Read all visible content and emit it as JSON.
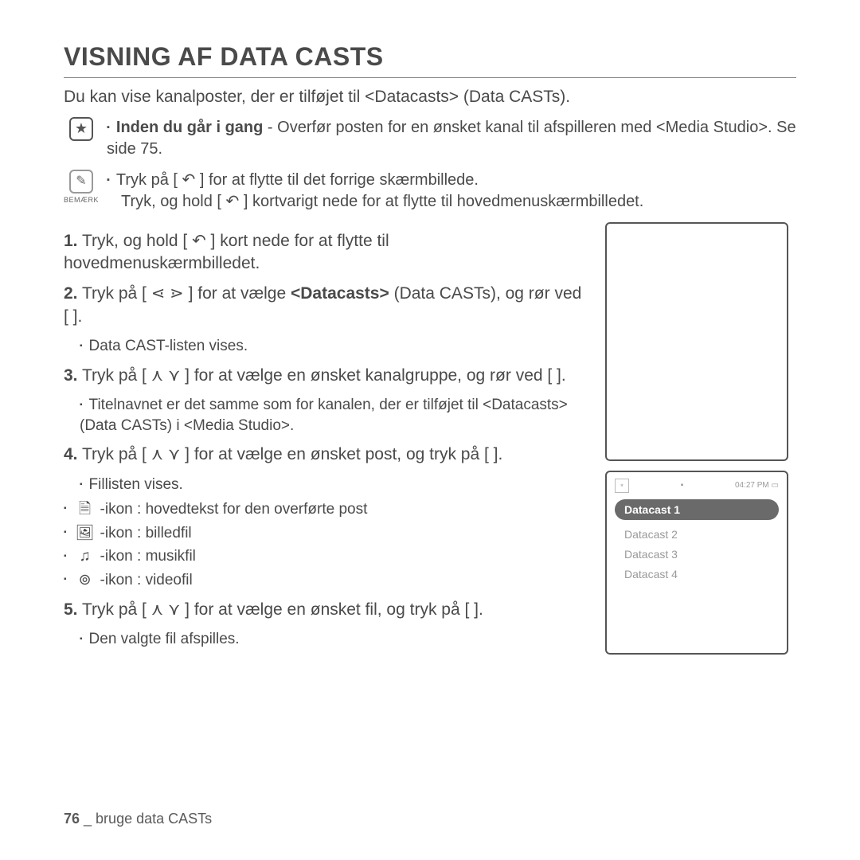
{
  "title": "VISNING AF DATA CASTS",
  "intro": "Du kan vise kanalposter, der er tilføjet til <Datacasts> (Data CASTs).",
  "note_star": {
    "label_bold": "Inden du går i gang",
    "text": " - Overfør posten for en ønsket kanal til afspilleren med <Media Studio>. Se side 75."
  },
  "note_bemark": {
    "label": "BEMÆRK",
    "line1": "Tryk på [ ↶ ] for at flytte til det forrige skærmbillede.",
    "line2": "Tryk, og hold [ ↶ ] kortvarigt nede for at flytte til hovedmenuskærmbilledet."
  },
  "steps": {
    "s1": "Tryk, og hold [ ↶ ] kort nede for at flytte til hovedmenuskærmbilledet.",
    "s2a": "Tryk på [ ⋖ ⋗ ] for at vælge ",
    "s2bold": "<Datacasts>",
    "s2b": " (Data CASTs), og rør ved [     ].",
    "s2sub": "Data CAST-listen vises.",
    "s3": "Tryk på [ ⋏ ⋎ ] for at vælge en ønsket kanalgruppe, og rør ved [     ].",
    "s3sub": "Titelnavnet er det samme som for kanalen, der er tilføjet til <Datacasts> (Data CASTs) i <Media Studio>.",
    "s4": "Tryk på [ ⋏ ⋎ ] for at vælge en ønsket post, og tryk på [     ].",
    "s4sub": "Fillisten vises.",
    "s5": "Tryk på [ ⋏ ⋎ ] for at vælge en ønsket fil, og tryk på [     ].",
    "s5sub": "Den valgte fil afspilles."
  },
  "icons": {
    "doc": "-ikon : hovedtekst for den overførte post",
    "img": "-ikon : billedfil",
    "music": "-ikon : musikfil",
    "video": "-ikon : videofil"
  },
  "screen": {
    "time": "04:27 PM",
    "item1": "Datacast 1",
    "item2": "Datacast 2",
    "item3": "Datacast 3",
    "item4": "Datacast 4"
  },
  "footer": {
    "page": "76",
    "section": "bruge data CASTs"
  }
}
